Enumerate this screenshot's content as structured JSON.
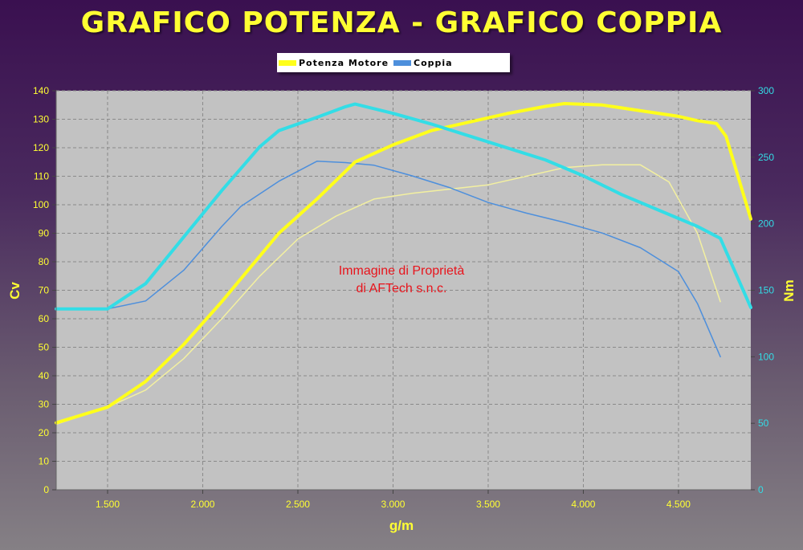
{
  "chart_data": {
    "type": "line",
    "title": "GRAFICO POTENZA - GRAFICO COPPIA",
    "xlabel": "g/m",
    "ylabel_left": "Cv",
    "ylabel_right": "Nm",
    "xlim": [
      1230,
      4880
    ],
    "ylim_left": [
      0,
      140
    ],
    "ylim_right": [
      0,
      300
    ],
    "x_ticks": [
      1500,
      2000,
      2500,
      3000,
      3500,
      4000,
      4500
    ],
    "x_tick_labels": [
      "1.500",
      "2.000",
      "2.500",
      "3.000",
      "3.500",
      "4.000",
      "4.500"
    ],
    "y_left_ticks": [
      0,
      10,
      20,
      30,
      40,
      50,
      60,
      70,
      80,
      90,
      100,
      110,
      120,
      130,
      140
    ],
    "y_right_ticks": [
      0,
      50,
      100,
      150,
      200,
      250,
      300
    ],
    "grid": true,
    "legend": [
      {
        "label": "Potenza Motore",
        "color": "#ffff1a"
      },
      {
        "label": "Coppia",
        "color": "#4d8fdc"
      }
    ],
    "annotation_lines": [
      "Immagine di Proprietà",
      "di AFTech s.n.c."
    ],
    "series": [
      {
        "name": "Potenza Motore",
        "axis": "left",
        "color": "#ffff1a",
        "width": 4,
        "points": [
          [
            1230,
            23.5
          ],
          [
            1500,
            29
          ],
          [
            1700,
            38
          ],
          [
            1900,
            51
          ],
          [
            2100,
            66
          ],
          [
            2300,
            82
          ],
          [
            2400,
            90
          ],
          [
            2600,
            102
          ],
          [
            2800,
            115
          ],
          [
            3000,
            121
          ],
          [
            3200,
            126
          ],
          [
            3400,
            129
          ],
          [
            3600,
            132
          ],
          [
            3800,
            134.5
          ],
          [
            3900,
            135.5
          ],
          [
            4100,
            135
          ],
          [
            4300,
            133
          ],
          [
            4500,
            131
          ],
          [
            4600,
            129.5
          ],
          [
            4700,
            128.5
          ],
          [
            4750,
            124
          ],
          [
            4880,
            95
          ]
        ]
      },
      {
        "name": "Coppia",
        "axis": "right",
        "color": "#33dde6",
        "width": 4,
        "points": [
          [
            1230,
            136
          ],
          [
            1500,
            136
          ],
          [
            1700,
            155
          ],
          [
            1900,
            190
          ],
          [
            2100,
            225
          ],
          [
            2300,
            258
          ],
          [
            2400,
            270
          ],
          [
            2600,
            280
          ],
          [
            2750,
            288
          ],
          [
            2800,
            290
          ],
          [
            3000,
            283
          ],
          [
            3200,
            275
          ],
          [
            3400,
            266
          ],
          [
            3600,
            257
          ],
          [
            3800,
            248
          ],
          [
            4000,
            236
          ],
          [
            4200,
            222
          ],
          [
            4400,
            210
          ],
          [
            4600,
            198
          ],
          [
            4720,
            189
          ],
          [
            4880,
            137
          ]
        ]
      },
      {
        "axis": "left",
        "color": "#f3f0a0",
        "width": 1.5,
        "points": [
          [
            1230,
            23
          ],
          [
            1500,
            29
          ],
          [
            1700,
            35
          ],
          [
            1900,
            46
          ],
          [
            2100,
            60
          ],
          [
            2300,
            75
          ],
          [
            2500,
            88
          ],
          [
            2700,
            96
          ],
          [
            2900,
            102
          ],
          [
            3100,
            104
          ],
          [
            3300,
            105.5
          ],
          [
            3500,
            107
          ],
          [
            3700,
            110
          ],
          [
            3900,
            113
          ],
          [
            4100,
            114
          ],
          [
            4300,
            114
          ],
          [
            4450,
            108
          ],
          [
            4600,
            90
          ],
          [
            4720,
            66
          ]
        ]
      },
      {
        "axis": "right",
        "color": "#4d8fdc",
        "width": 1.5,
        "points": [
          [
            1230,
            136
          ],
          [
            1500,
            136
          ],
          [
            1700,
            142
          ],
          [
            1900,
            165
          ],
          [
            2100,
            198
          ],
          [
            2200,
            213
          ],
          [
            2400,
            232
          ],
          [
            2600,
            247
          ],
          [
            2750,
            246
          ],
          [
            2900,
            244
          ],
          [
            3100,
            236
          ],
          [
            3300,
            227
          ],
          [
            3500,
            216
          ],
          [
            3700,
            208
          ],
          [
            3900,
            201
          ],
          [
            4100,
            193
          ],
          [
            4300,
            182
          ],
          [
            4500,
            164
          ],
          [
            4600,
            140
          ],
          [
            4720,
            100
          ]
        ]
      }
    ]
  }
}
